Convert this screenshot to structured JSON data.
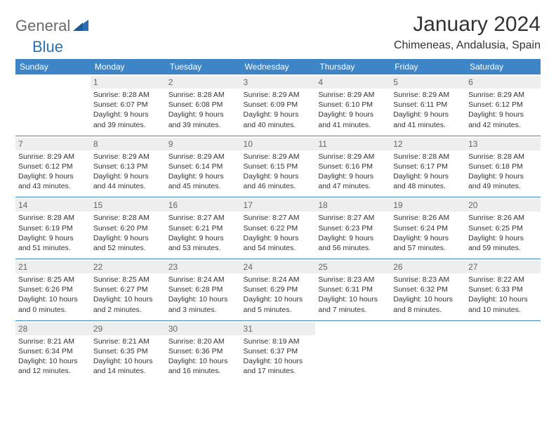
{
  "brand": {
    "part1": "General",
    "part2": "Blue"
  },
  "title": "January 2024",
  "location": "Chimeneas, Andalusia, Spain",
  "colors": {
    "header_bg": "#3d85c6",
    "header_text": "#ffffff",
    "daynum_bg": "#eeeeee",
    "daynum_text": "#666666",
    "body_text": "#333333",
    "border": "#3d85c6",
    "brand_gray": "#6a6a6a",
    "brand_blue": "#2b6fb3"
  },
  "weekdays": [
    "Sunday",
    "Monday",
    "Tuesday",
    "Wednesday",
    "Thursday",
    "Friday",
    "Saturday"
  ],
  "weeks": [
    [
      null,
      {
        "n": "1",
        "sr": "8:28 AM",
        "ss": "6:07 PM",
        "dl": "9 hours and 39 minutes."
      },
      {
        "n": "2",
        "sr": "8:28 AM",
        "ss": "6:08 PM",
        "dl": "9 hours and 39 minutes."
      },
      {
        "n": "3",
        "sr": "8:29 AM",
        "ss": "6:09 PM",
        "dl": "9 hours and 40 minutes."
      },
      {
        "n": "4",
        "sr": "8:29 AM",
        "ss": "6:10 PM",
        "dl": "9 hours and 41 minutes."
      },
      {
        "n": "5",
        "sr": "8:29 AM",
        "ss": "6:11 PM",
        "dl": "9 hours and 41 minutes."
      },
      {
        "n": "6",
        "sr": "8:29 AM",
        "ss": "6:12 PM",
        "dl": "9 hours and 42 minutes."
      }
    ],
    [
      {
        "n": "7",
        "sr": "8:29 AM",
        "ss": "6:12 PM",
        "dl": "9 hours and 43 minutes."
      },
      {
        "n": "8",
        "sr": "8:29 AM",
        "ss": "6:13 PM",
        "dl": "9 hours and 44 minutes."
      },
      {
        "n": "9",
        "sr": "8:29 AM",
        "ss": "6:14 PM",
        "dl": "9 hours and 45 minutes."
      },
      {
        "n": "10",
        "sr": "8:29 AM",
        "ss": "6:15 PM",
        "dl": "9 hours and 46 minutes."
      },
      {
        "n": "11",
        "sr": "8:29 AM",
        "ss": "6:16 PM",
        "dl": "9 hours and 47 minutes."
      },
      {
        "n": "12",
        "sr": "8:28 AM",
        "ss": "6:17 PM",
        "dl": "9 hours and 48 minutes."
      },
      {
        "n": "13",
        "sr": "8:28 AM",
        "ss": "6:18 PM",
        "dl": "9 hours and 49 minutes."
      }
    ],
    [
      {
        "n": "14",
        "sr": "8:28 AM",
        "ss": "6:19 PM",
        "dl": "9 hours and 51 minutes."
      },
      {
        "n": "15",
        "sr": "8:28 AM",
        "ss": "6:20 PM",
        "dl": "9 hours and 52 minutes."
      },
      {
        "n": "16",
        "sr": "8:27 AM",
        "ss": "6:21 PM",
        "dl": "9 hours and 53 minutes."
      },
      {
        "n": "17",
        "sr": "8:27 AM",
        "ss": "6:22 PM",
        "dl": "9 hours and 54 minutes."
      },
      {
        "n": "18",
        "sr": "8:27 AM",
        "ss": "6:23 PM",
        "dl": "9 hours and 56 minutes."
      },
      {
        "n": "19",
        "sr": "8:26 AM",
        "ss": "6:24 PM",
        "dl": "9 hours and 57 minutes."
      },
      {
        "n": "20",
        "sr": "8:26 AM",
        "ss": "6:25 PM",
        "dl": "9 hours and 59 minutes."
      }
    ],
    [
      {
        "n": "21",
        "sr": "8:25 AM",
        "ss": "6:26 PM",
        "dl": "10 hours and 0 minutes."
      },
      {
        "n": "22",
        "sr": "8:25 AM",
        "ss": "6:27 PM",
        "dl": "10 hours and 2 minutes."
      },
      {
        "n": "23",
        "sr": "8:24 AM",
        "ss": "6:28 PM",
        "dl": "10 hours and 3 minutes."
      },
      {
        "n": "24",
        "sr": "8:24 AM",
        "ss": "6:29 PM",
        "dl": "10 hours and 5 minutes."
      },
      {
        "n": "25",
        "sr": "8:23 AM",
        "ss": "6:31 PM",
        "dl": "10 hours and 7 minutes."
      },
      {
        "n": "26",
        "sr": "8:23 AM",
        "ss": "6:32 PM",
        "dl": "10 hours and 8 minutes."
      },
      {
        "n": "27",
        "sr": "8:22 AM",
        "ss": "6:33 PM",
        "dl": "10 hours and 10 minutes."
      }
    ],
    [
      {
        "n": "28",
        "sr": "8:21 AM",
        "ss": "6:34 PM",
        "dl": "10 hours and 12 minutes."
      },
      {
        "n": "29",
        "sr": "8:21 AM",
        "ss": "6:35 PM",
        "dl": "10 hours and 14 minutes."
      },
      {
        "n": "30",
        "sr": "8:20 AM",
        "ss": "6:36 PM",
        "dl": "10 hours and 16 minutes."
      },
      {
        "n": "31",
        "sr": "8:19 AM",
        "ss": "6:37 PM",
        "dl": "10 hours and 17 minutes."
      },
      null,
      null,
      null
    ]
  ],
  "labels": {
    "sunrise": "Sunrise:",
    "sunset": "Sunset:",
    "daylight": "Daylight:"
  }
}
